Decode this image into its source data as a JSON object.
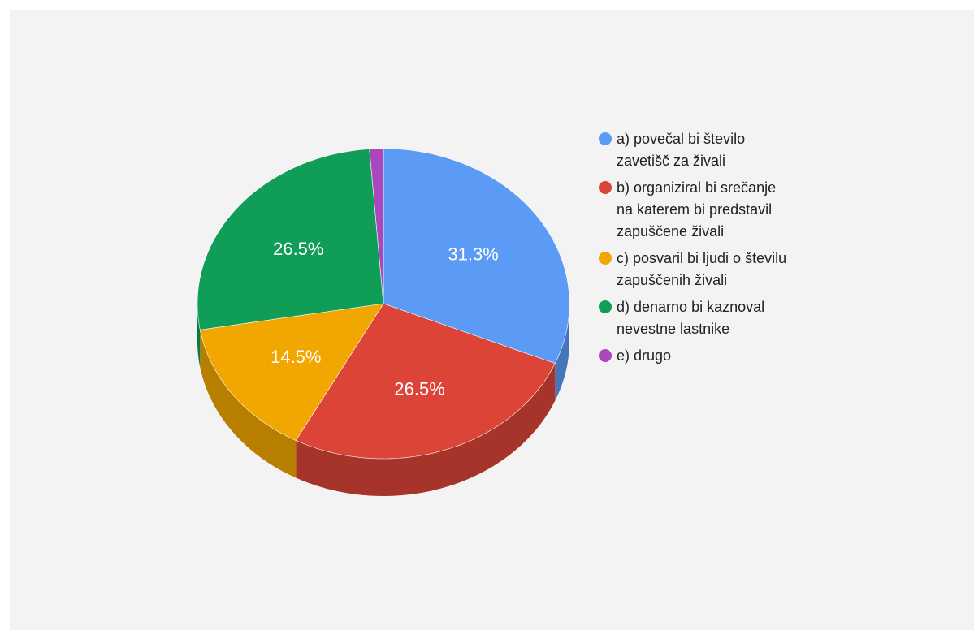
{
  "chart_data": {
    "type": "pie",
    "title": "",
    "three_d": true,
    "legend_position": "right",
    "slices": [
      {
        "label": "a) povečal bi število zavetišč za živali",
        "value": 31.3,
        "display": "31.3%",
        "color": "#5b9af5"
      },
      {
        "label": "b) organiziral bi srečanje na katerem bi predstavil zapuščene živali",
        "value": 26.5,
        "display": "26.5%",
        "color": "#db4437"
      },
      {
        "label": "c) posvaril bi ljudi o številu zapuščenih živali",
        "value": 14.5,
        "display": "14.5%",
        "color": "#f2a600"
      },
      {
        "label": "d) denarno bi kaznoval nevestne lastnike",
        "value": 26.5,
        "display": "26.5%",
        "color": "#0f9d58"
      },
      {
        "label": "e) drugo",
        "value": 1.2,
        "display": "",
        "color": "#ab47bc"
      }
    ]
  }
}
